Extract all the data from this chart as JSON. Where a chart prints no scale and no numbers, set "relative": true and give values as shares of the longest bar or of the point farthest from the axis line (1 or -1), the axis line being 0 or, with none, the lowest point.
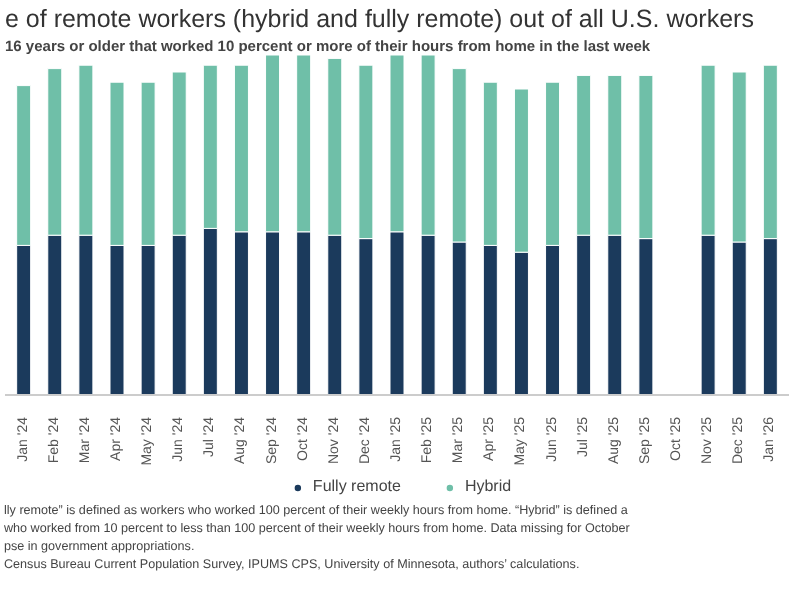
{
  "chart_data": {
    "type": "bar",
    "stacked": true,
    "relative": true,
    "title": "e of remote workers (hybrid and fully remote) out of all U.S. workers",
    "subtitle": "16 years or older that worked 10 percent or more of their hours from home in the last week",
    "categories": [
      "Jan '24",
      "Feb '24",
      "Mar '24",
      "Apr '24",
      "May '24",
      "Jun '24",
      "Jul '24",
      "Aug '24",
      "Sep '24",
      "Oct '24",
      "Nov '24",
      "Dec '24",
      "Jan '25",
      "Feb '25",
      "Mar '25",
      "Apr '25",
      "May '25",
      "Jun '25",
      "Jul '25",
      "Aug '25",
      "Sep '25",
      "Oct '25",
      "Nov '25",
      "Dec '25",
      "Jan '26"
    ],
    "series": [
      {
        "name": "Fully remote",
        "color": "#1b3a5c",
        "values": [
          0.44,
          0.47,
          0.47,
          0.44,
          0.44,
          0.47,
          0.49,
          0.48,
          0.48,
          0.48,
          0.47,
          0.46,
          0.48,
          0.47,
          0.45,
          0.44,
          0.42,
          0.44,
          0.47,
          0.47,
          0.46,
          null,
          0.47,
          0.45,
          0.46
        ]
      },
      {
        "name": "Hybrid",
        "color": "#6fbfa8",
        "values": [
          0.47,
          0.49,
          0.5,
          0.48,
          0.48,
          0.48,
          0.48,
          0.49,
          0.52,
          0.52,
          0.52,
          0.51,
          0.52,
          0.53,
          0.51,
          0.48,
          0.48,
          0.48,
          0.47,
          0.47,
          0.48,
          null,
          0.5,
          0.5,
          0.51
        ]
      }
    ],
    "legend": "bottom",
    "annotations": [
      "lly remote” is defined as workers who worked 100 percent of their weekly hours from home. “Hybrid” is defined a",
      "who worked from 10 percent to less than 100 percent of their weekly hours from home. Data missing for October",
      "pse in government appropriations.",
      "Census Bureau Current Population Survey, IPUMS CPS, University of Minnesota, authors’ calculations."
    ]
  }
}
